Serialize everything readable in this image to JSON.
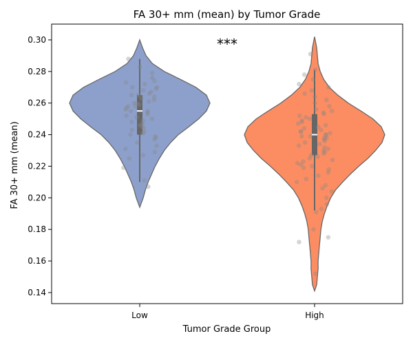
{
  "chart_data": {
    "type": "violin",
    "title": "FA 30+ mm (mean) by Tumor Grade",
    "xlabel": "Tumor Grade Group",
    "ylabel": "FA 30+ mm (mean)",
    "categories": [
      "Low",
      "High"
    ],
    "ylim": [
      0.133,
      0.31
    ],
    "yticks": [
      0.14,
      0.16,
      0.18,
      0.2,
      0.22,
      0.24,
      0.26,
      0.28,
      0.3
    ],
    "ytick_labels": [
      "0.14",
      "0.16",
      "0.18",
      "0.20",
      "0.22",
      "0.24",
      "0.26",
      "0.28",
      "0.30"
    ],
    "grid": false,
    "significance": "***",
    "series": [
      {
        "category": "Low",
        "color": "#8da0cb",
        "min": 0.194,
        "max": 0.3,
        "q1": 0.24,
        "median": 0.255,
        "q3": 0.265,
        "whisker_low": 0.21,
        "whisker_high": 0.288,
        "density": [
          [
            0.194,
            0.0
          ],
          [
            0.2,
            0.05
          ],
          [
            0.205,
            0.08
          ],
          [
            0.21,
            0.12
          ],
          [
            0.215,
            0.17
          ],
          [
            0.22,
            0.22
          ],
          [
            0.225,
            0.28
          ],
          [
            0.23,
            0.35
          ],
          [
            0.235,
            0.44
          ],
          [
            0.24,
            0.55
          ],
          [
            0.245,
            0.7
          ],
          [
            0.25,
            0.84
          ],
          [
            0.255,
            0.95
          ],
          [
            0.26,
            1.0
          ],
          [
            0.265,
            0.95
          ],
          [
            0.27,
            0.8
          ],
          [
            0.275,
            0.58
          ],
          [
            0.28,
            0.35
          ],
          [
            0.285,
            0.18
          ],
          [
            0.29,
            0.09
          ],
          [
            0.295,
            0.04
          ],
          [
            0.3,
            0.0
          ]
        ],
        "points": [
          0.288,
          0.283,
          0.279,
          0.276,
          0.274,
          0.273,
          0.272,
          0.27,
          0.27,
          0.269,
          0.268,
          0.267,
          0.266,
          0.265,
          0.265,
          0.264,
          0.263,
          0.262,
          0.261,
          0.26,
          0.26,
          0.259,
          0.258,
          0.258,
          0.257,
          0.256,
          0.255,
          0.255,
          0.254,
          0.253,
          0.252,
          0.251,
          0.25,
          0.249,
          0.248,
          0.247,
          0.246,
          0.245,
          0.244,
          0.243,
          0.242,
          0.241,
          0.24,
          0.239,
          0.238,
          0.237,
          0.235,
          0.233,
          0.231,
          0.229,
          0.227,
          0.225,
          0.219,
          0.211,
          0.207
        ]
      },
      {
        "category": "High",
        "color": "#fc8d62",
        "min": 0.141,
        "max": 0.302,
        "q1": 0.227,
        "median": 0.24,
        "q3": 0.253,
        "whisker_low": 0.192,
        "whisker_high": 0.281,
        "density": [
          [
            0.141,
            0.0
          ],
          [
            0.145,
            0.03
          ],
          [
            0.15,
            0.04
          ],
          [
            0.155,
            0.05
          ],
          [
            0.16,
            0.05
          ],
          [
            0.165,
            0.06
          ],
          [
            0.17,
            0.07
          ],
          [
            0.175,
            0.08
          ],
          [
            0.18,
            0.09
          ],
          [
            0.185,
            0.11
          ],
          [
            0.19,
            0.14
          ],
          [
            0.195,
            0.18
          ],
          [
            0.2,
            0.23
          ],
          [
            0.205,
            0.3
          ],
          [
            0.21,
            0.4
          ],
          [
            0.215,
            0.51
          ],
          [
            0.22,
            0.63
          ],
          [
            0.225,
            0.76
          ],
          [
            0.23,
            0.87
          ],
          [
            0.235,
            0.96
          ],
          [
            0.24,
            1.0
          ],
          [
            0.245,
            0.95
          ],
          [
            0.25,
            0.83
          ],
          [
            0.255,
            0.66
          ],
          [
            0.26,
            0.48
          ],
          [
            0.265,
            0.33
          ],
          [
            0.27,
            0.21
          ],
          [
            0.275,
            0.13
          ],
          [
            0.28,
            0.08
          ],
          [
            0.285,
            0.05
          ],
          [
            0.29,
            0.04
          ],
          [
            0.295,
            0.03
          ],
          [
            0.302,
            0.0
          ]
        ],
        "points": [
          0.291,
          0.281,
          0.278,
          0.275,
          0.272,
          0.27,
          0.268,
          0.266,
          0.264,
          0.262,
          0.26,
          0.258,
          0.256,
          0.255,
          0.254,
          0.253,
          0.252,
          0.251,
          0.25,
          0.249,
          0.248,
          0.247,
          0.246,
          0.245,
          0.244,
          0.243,
          0.242,
          0.242,
          0.241,
          0.24,
          0.24,
          0.239,
          0.239,
          0.238,
          0.238,
          0.237,
          0.236,
          0.235,
          0.234,
          0.233,
          0.232,
          0.231,
          0.23,
          0.229,
          0.228,
          0.227,
          0.226,
          0.225,
          0.224,
          0.223,
          0.222,
          0.221,
          0.22,
          0.219,
          0.218,
          0.216,
          0.214,
          0.212,
          0.21,
          0.208,
          0.206,
          0.204,
          0.2,
          0.196,
          0.193,
          0.191,
          0.18,
          0.175,
          0.172,
          0.152
        ]
      }
    ]
  }
}
